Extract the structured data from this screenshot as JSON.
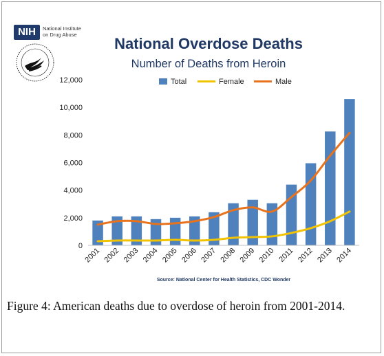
{
  "nih_logo": {
    "mark": "NIH",
    "line1": "National Institute",
    "line2": "on Drug Abuse"
  },
  "hhs_seal": {
    "icon": "hhs-eagle-seal"
  },
  "chart_data": {
    "type": "bar",
    "title": "National Overdose Deaths",
    "subtitle": "Number of Deaths from Heroin",
    "source": "Source: National Center for Health Statistics, CDC Wonder",
    "categories": [
      "2001",
      "2002",
      "2003",
      "2004",
      "2005",
      "2006",
      "2007",
      "2008",
      "2009",
      "2010",
      "2011",
      "2012",
      "2013",
      "2014"
    ],
    "ylim": [
      0,
      12000
    ],
    "yticks": [
      "0",
      "2,000",
      "4,000",
      "6,000",
      "8,000",
      "10,000",
      "12,000"
    ],
    "ytick_values": [
      0,
      2000,
      4000,
      6000,
      8000,
      10000,
      12000
    ],
    "grid": false,
    "legend_position": "top-center",
    "series": [
      {
        "name": "Total",
        "kind": "bar",
        "color": "#4f81bd",
        "values": [
          1800,
          2100,
          2100,
          1900,
          2000,
          2100,
          2400,
          3050,
          3300,
          3050,
          4400,
          5950,
          8250,
          10600
        ]
      },
      {
        "name": "Female",
        "kind": "line",
        "color": "#f2c300",
        "values": [
          300,
          350,
          350,
          350,
          400,
          350,
          400,
          550,
          600,
          650,
          900,
          1250,
          1750,
          2450
        ]
      },
      {
        "name": "Male",
        "kind": "line",
        "color": "#e8731c",
        "values": [
          1500,
          1750,
          1750,
          1550,
          1600,
          1750,
          2050,
          2550,
          2750,
          2450,
          3500,
          4700,
          6500,
          8150
        ]
      }
    ]
  },
  "caption": {
    "label": "Figure 4:",
    "text": "American deaths due to overdose of heroin from 2001-2014."
  }
}
